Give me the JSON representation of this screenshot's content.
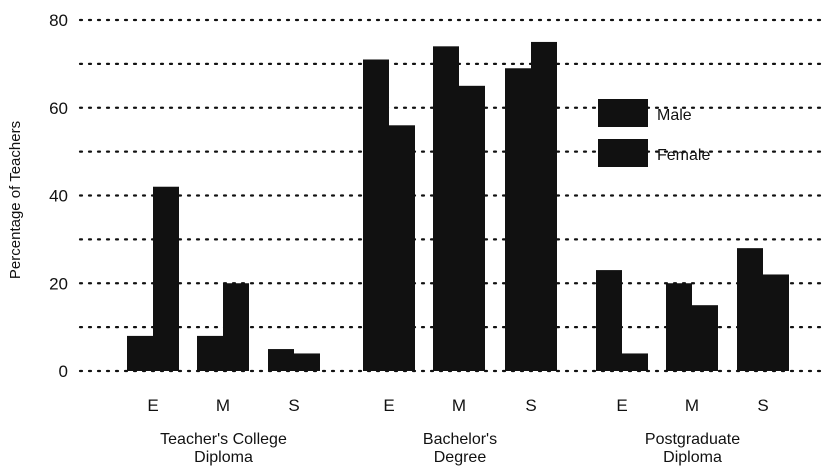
{
  "chart_data": {
    "type": "bar",
    "ylabel": "Percentage of Teachers",
    "ylim": [
      0,
      80
    ],
    "yticks": [
      0,
      20,
      40,
      60,
      80
    ],
    "grid": true,
    "legend_position": "right",
    "bar_color": "#111111",
    "groups": [
      {
        "label": "Teacher's College\nDiploma",
        "categories": [
          "E",
          "M",
          "S"
        ],
        "male": [
          8,
          8,
          5
        ],
        "female": [
          42,
          20,
          4
        ]
      },
      {
        "label": "Bachelor's\nDegree",
        "categories": [
          "E",
          "M",
          "S"
        ],
        "male": [
          71,
          74,
          69
        ],
        "female": [
          56,
          65,
          75
        ]
      },
      {
        "label": "Postgraduate\nDiploma",
        "categories": [
          "E",
          "M",
          "S"
        ],
        "male": [
          23,
          20,
          28
        ],
        "female": [
          4,
          15,
          22
        ]
      }
    ],
    "series": [
      {
        "name": "Male"
      },
      {
        "name": "Female"
      }
    ]
  }
}
